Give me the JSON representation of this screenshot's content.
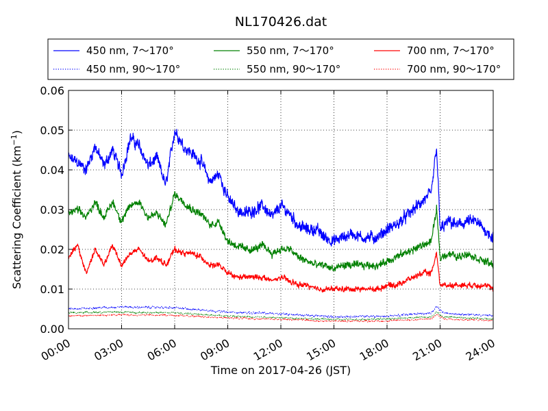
{
  "chart_data": {
    "type": "line",
    "title": "NL170426.dat",
    "xlabel": "Time on 2017-04-26 (JST)",
    "ylabel_main": "Scattering Coefficient (km",
    "ylabel_sup": "−1",
    "ylabel_close": ")",
    "xlim": [
      0,
      24
    ],
    "ylim": [
      0,
      0.06
    ],
    "x_ticks": [
      0,
      3,
      6,
      9,
      12,
      15,
      18,
      21,
      24
    ],
    "x_tick_labels": [
      "00:00",
      "03:00",
      "06:00",
      "09:00",
      "12:00",
      "15:00",
      "18:00",
      "21:00",
      "24:00"
    ],
    "y_ticks": [
      0,
      0.01,
      0.02,
      0.03,
      0.04,
      0.05,
      0.06
    ],
    "y_tick_labels": [
      "0.00",
      "0.01",
      "0.02",
      "0.03",
      "0.04",
      "0.05",
      "0.06"
    ],
    "grid": true,
    "legend_position": "above plot",
    "series": [
      {
        "name": "450 nm, 7～170°",
        "color": "#0000ff",
        "style": "solid",
        "noise": 0.0022,
        "x": [
          0,
          0.5,
          1,
          1.5,
          2,
          2.5,
          3,
          3.5,
          4,
          4.5,
          5,
          5.5,
          6,
          6.5,
          7,
          7.5,
          8,
          8.5,
          9,
          9.5,
          10,
          10.5,
          11,
          11.5,
          12,
          12.5,
          13,
          13.5,
          14,
          14.5,
          15,
          15.5,
          16,
          16.5,
          17,
          17.5,
          18,
          18.5,
          19,
          19.5,
          20,
          20.5,
          20.8,
          21,
          21.5,
          22,
          22.5,
          23,
          23.5,
          24
        ],
        "values": [
          0.043,
          0.042,
          0.04,
          0.046,
          0.041,
          0.045,
          0.039,
          0.048,
          0.046,
          0.041,
          0.043,
          0.036,
          0.05,
          0.046,
          0.044,
          0.042,
          0.037,
          0.039,
          0.033,
          0.03,
          0.029,
          0.03,
          0.031,
          0.028,
          0.031,
          0.029,
          0.026,
          0.025,
          0.025,
          0.023,
          0.022,
          0.023,
          0.024,
          0.023,
          0.023,
          0.023,
          0.025,
          0.026,
          0.028,
          0.03,
          0.032,
          0.034,
          0.046,
          0.025,
          0.027,
          0.026,
          0.027,
          0.027,
          0.025,
          0.023
        ]
      },
      {
        "name": "450 nm, 90～170°",
        "color": "#0000ff",
        "style": "dotted",
        "noise": 0.0004,
        "x": [
          0,
          3,
          6,
          9,
          12,
          15,
          18,
          20.5,
          20.8,
          21.2,
          24
        ],
        "values": [
          0.005,
          0.0055,
          0.0053,
          0.0042,
          0.0038,
          0.003,
          0.0032,
          0.004,
          0.0055,
          0.004,
          0.0033
        ]
      },
      {
        "name": "550 nm, 7～170°",
        "color": "#008000",
        "style": "solid",
        "noise": 0.0014,
        "x": [
          0,
          0.5,
          1,
          1.5,
          2,
          2.5,
          3,
          3.5,
          4,
          4.5,
          5,
          5.5,
          6,
          6.5,
          7,
          7.5,
          8,
          8.5,
          9,
          9.5,
          10,
          10.5,
          11,
          11.5,
          12,
          12.5,
          13,
          13.5,
          14,
          14.5,
          15,
          15.5,
          16,
          16.5,
          17,
          17.5,
          18,
          18.5,
          19,
          19.5,
          20,
          20.5,
          20.8,
          21,
          21.5,
          22,
          22.5,
          23,
          23.5,
          24
        ],
        "values": [
          0.029,
          0.03,
          0.028,
          0.032,
          0.028,
          0.032,
          0.027,
          0.031,
          0.032,
          0.028,
          0.029,
          0.026,
          0.034,
          0.032,
          0.03,
          0.029,
          0.026,
          0.027,
          0.022,
          0.021,
          0.02,
          0.02,
          0.021,
          0.019,
          0.02,
          0.02,
          0.018,
          0.017,
          0.016,
          0.016,
          0.015,
          0.016,
          0.016,
          0.016,
          0.016,
          0.016,
          0.017,
          0.018,
          0.019,
          0.02,
          0.021,
          0.022,
          0.03,
          0.018,
          0.019,
          0.018,
          0.019,
          0.018,
          0.017,
          0.016
        ]
      },
      {
        "name": "550 nm, 90～170°",
        "color": "#008000",
        "style": "dotted",
        "noise": 0.0003,
        "x": [
          0,
          3,
          6,
          9,
          12,
          15,
          18,
          20.5,
          20.8,
          21.2,
          24
        ],
        "values": [
          0.004,
          0.0042,
          0.004,
          0.0032,
          0.0028,
          0.0023,
          0.0025,
          0.003,
          0.0042,
          0.003,
          0.0025
        ]
      },
      {
        "name": "700 nm, 7～170°",
        "color": "#ff0000",
        "style": "solid",
        "noise": 0.001,
        "x": [
          0,
          0.5,
          1,
          1.5,
          2,
          2.5,
          3,
          3.5,
          4,
          4.5,
          5,
          5.5,
          6,
          6.5,
          7,
          7.5,
          8,
          8.5,
          9,
          9.5,
          10,
          10.5,
          11,
          11.5,
          12,
          12.5,
          13,
          13.5,
          14,
          14.5,
          15,
          15.5,
          16,
          16.5,
          17,
          17.5,
          18,
          18.5,
          19,
          19.5,
          20,
          20.5,
          20.8,
          21,
          21.5,
          22,
          22.5,
          23,
          23.5,
          24
        ],
        "values": [
          0.018,
          0.021,
          0.014,
          0.02,
          0.016,
          0.021,
          0.016,
          0.019,
          0.02,
          0.017,
          0.018,
          0.016,
          0.02,
          0.019,
          0.019,
          0.018,
          0.016,
          0.016,
          0.014,
          0.013,
          0.013,
          0.013,
          0.013,
          0.012,
          0.013,
          0.012,
          0.011,
          0.011,
          0.01,
          0.01,
          0.01,
          0.01,
          0.01,
          0.01,
          0.01,
          0.01,
          0.011,
          0.011,
          0.012,
          0.013,
          0.014,
          0.014,
          0.019,
          0.011,
          0.011,
          0.011,
          0.011,
          0.011,
          0.011,
          0.01
        ]
      },
      {
        "name": "700 nm, 90～170°",
        "color": "#ff0000",
        "style": "dotted",
        "noise": 0.0003,
        "x": [
          0,
          3,
          6,
          9,
          12,
          15,
          18,
          20.5,
          20.8,
          21.2,
          24
        ],
        "values": [
          0.0033,
          0.0035,
          0.0034,
          0.0027,
          0.0024,
          0.0019,
          0.002,
          0.0025,
          0.0036,
          0.0025,
          0.0021
        ]
      }
    ]
  }
}
